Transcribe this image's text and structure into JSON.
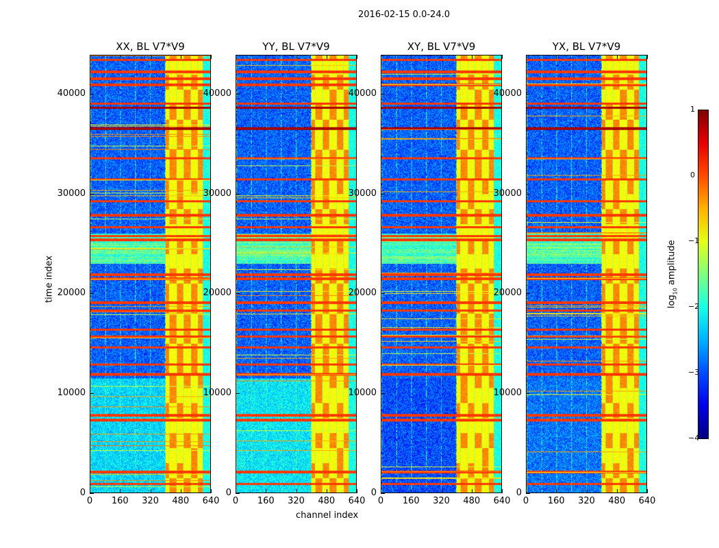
{
  "chart_data": {
    "type": "heatmap",
    "title": "2016-02-15 0.0-24.0",
    "xlabel": "channel index",
    "ylabel": "time index",
    "xlim": [
      0,
      640
    ],
    "ylim": [
      0,
      43900
    ],
    "xticks": [
      "0",
      "160",
      "320",
      "480",
      "640"
    ],
    "yticks": [
      "0",
      "10000",
      "20000",
      "30000",
      "40000"
    ],
    "panels": [
      {
        "title": "XX, BL V7*V9",
        "low_time_level": -2.3
      },
      {
        "title": "YY, BL V7*V9",
        "low_time_level": -2.2
      },
      {
        "title": "XY, BL V7*V9",
        "low_time_level": -3.0
      },
      {
        "title": "YX, BL V7*V9",
        "low_time_level": -2.8
      }
    ],
    "rfi_channel_band": [
      400,
      600
    ],
    "flagged_time_rows": [
      43500,
      42300,
      41600,
      41000,
      39100,
      38700,
      36600,
      33600,
      31500,
      29300,
      27900,
      26700,
      25800,
      25400,
      21900,
      21500,
      19100,
      18300,
      16400,
      15700,
      14600,
      12900,
      11900,
      7800,
      7300,
      2100,
      900
    ],
    "colorbar": {
      "label": "log10 amplitude",
      "colormap": "jet",
      "range": [
        -4,
        1
      ],
      "ticks": [
        "1",
        "0",
        "−1",
        "−2",
        "−3",
        "−4"
      ]
    }
  }
}
